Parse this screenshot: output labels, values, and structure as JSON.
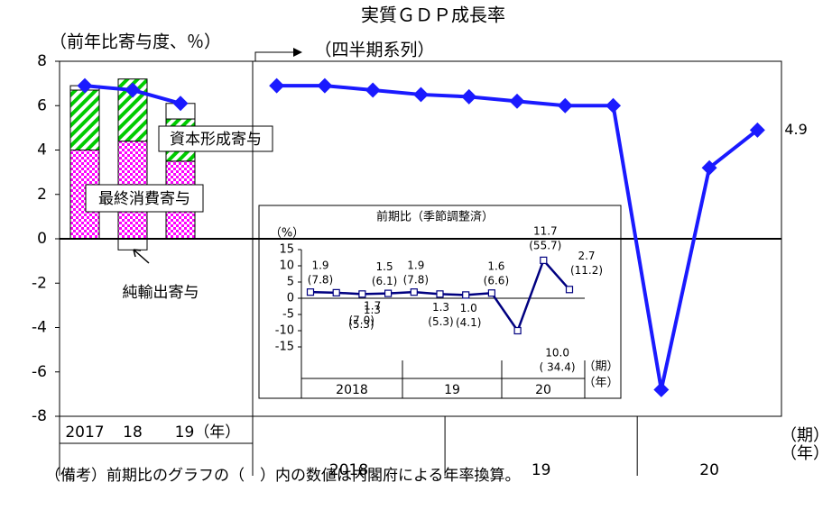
{
  "chart_data": [
    {
      "type": "combo",
      "title": "実質ＧＤＰ成長率",
      "y_label": "（前年比寄与度、％）",
      "quarterly_label": "（四半期系列）",
      "ylim": [
        -8,
        8
      ],
      "yticks": [
        -8,
        -6,
        -4,
        -2,
        0,
        2,
        4,
        6,
        8
      ],
      "annual": {
        "categories": [
          "2017",
          "18",
          "19（年）"
        ],
        "series": [
          {
            "name": "最終消費寄与",
            "color": "#ff00ff",
            "values": [
              4.0,
              4.4,
              3.5
            ]
          },
          {
            "name": "資本形成寄与",
            "color": "#00cc00",
            "values": [
              2.7,
              2.8,
              1.9
            ]
          },
          {
            "name": "純輸出寄与",
            "color": "#ffffff",
            "values": [
              0.2,
              -0.5,
              0.7
            ]
          }
        ],
        "growth": [
          6.9,
          6.7,
          6.1
        ],
        "color": "#1a1aff"
      },
      "quarterly": {
        "groups": [
          "2018",
          "19",
          "20"
        ],
        "values": [
          6.9,
          6.9,
          6.7,
          6.5,
          6.4,
          6.2,
          6.0,
          6.0,
          -6.8,
          3.2,
          4.9
        ],
        "value_labels": [
          null,
          null,
          null,
          null,
          null,
          null,
          null,
          null,
          null,
          null,
          "4.9"
        ],
        "unit_labels": [
          "（期）",
          "（年）"
        ],
        "color": "#1a1aff"
      }
    },
    {
      "type": "line",
      "title": "前期比（季節調整済）",
      "y_label": "（%）",
      "ylim": [
        -15,
        15
      ],
      "yticks": [
        15,
        10,
        5,
        0,
        -5,
        -10,
        -15
      ],
      "groups": [
        "2018",
        "19",
        "20"
      ],
      "unit_labels": [
        "（期）",
        "（年）"
      ],
      "color": "#000080",
      "values": [
        1.9,
        1.7,
        1.3,
        1.5,
        1.9,
        1.3,
        1.0,
        1.6,
        -10.0,
        11.7,
        2.7
      ],
      "value_labels": [
        "1.9",
        "1.7",
        "1.3",
        "1.5",
        "1.9",
        "1.3",
        "1.0",
        "1.6",
        "10.0",
        "11.7",
        "2.7"
      ],
      "annualized_values": [
        7.8,
        7.0,
        5.3,
        6.1,
        7.8,
        5.3,
        4.1,
        6.6,
        -34.4,
        55.7,
        11.2
      ],
      "annualized_labels": [
        "(7.8)",
        "(7.0)",
        "(5.3)",
        "(6.1)",
        "(7.8)",
        "(5.3)",
        "(4.1)",
        "(6.6)",
        "( 34.4)",
        "(55.7)",
        "(11.2)"
      ]
    }
  ],
  "note": "（備考）前期比のグラフの（　）内の数値は内閣府による年率換算。"
}
